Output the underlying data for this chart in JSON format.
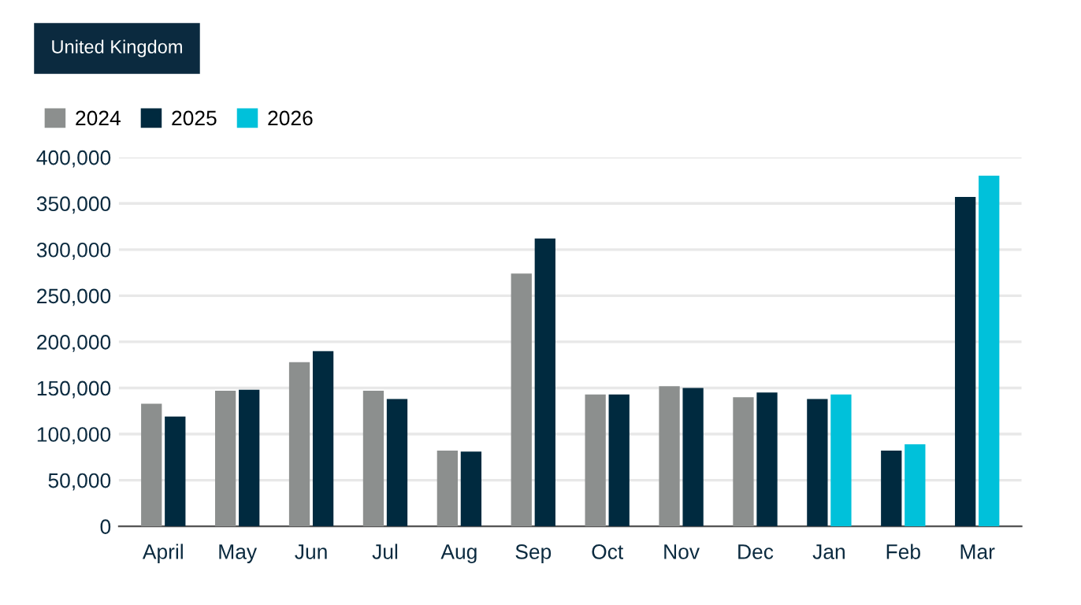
{
  "chart_data": {
    "type": "bar",
    "title": "United Kingdom",
    "categories": [
      "April",
      "May",
      "Jun",
      "Jul",
      "Aug",
      "Sep",
      "Oct",
      "Nov",
      "Dec",
      "Jan",
      "Feb",
      "Mar"
    ],
    "series": [
      {
        "name": "2024",
        "color": "#8c8f8e",
        "values": [
          133000,
          147000,
          178000,
          147000,
          82000,
          274000,
          143000,
          152000,
          140000,
          null,
          null,
          null
        ]
      },
      {
        "name": "2025",
        "color": "#002a3f",
        "values": [
          119000,
          148000,
          190000,
          138000,
          81000,
          312000,
          143000,
          150000,
          145000,
          138000,
          82000,
          357000
        ]
      },
      {
        "name": "2026",
        "color": "#00c1da",
        "values": [
          null,
          null,
          null,
          null,
          null,
          null,
          null,
          null,
          null,
          143000,
          89000,
          380000
        ]
      }
    ],
    "ylim": [
      0,
      400000
    ],
    "yticks": [
      {
        "value": 0,
        "label": "0"
      },
      {
        "value": 50000,
        "label": "50,000"
      },
      {
        "value": 100000,
        "label": "100,000"
      },
      {
        "value": 150000,
        "label": "150,000"
      },
      {
        "value": 200000,
        "label": "200,000"
      },
      {
        "value": 250000,
        "label": "250,000"
      },
      {
        "value": 300000,
        "label": "300,000"
      },
      {
        "value": 350000,
        "label": "350,000"
      },
      {
        "value": 400000,
        "label": "400,000"
      }
    ],
    "grid": "y",
    "legend": "top left"
  }
}
